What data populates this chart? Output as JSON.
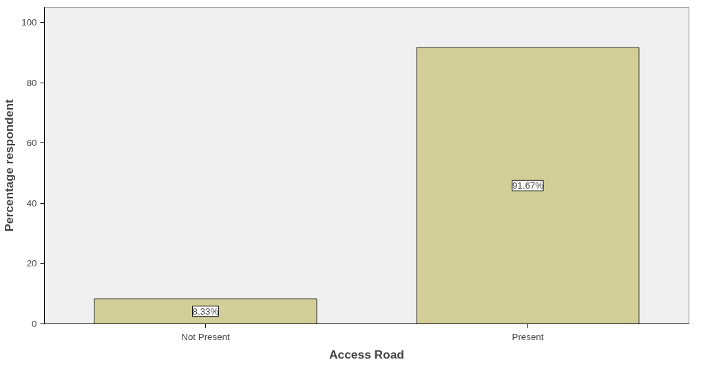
{
  "chart_data": {
    "type": "bar",
    "xlabel": "Access Road",
    "ylabel": "Percentage respondent",
    "categories": [
      "Not Present",
      "Present"
    ],
    "values": [
      8.33,
      91.67
    ],
    "value_labels": [
      "8.33%",
      "91.67%"
    ],
    "color": "#d3ce97",
    "ylim": [
      0,
      105
    ],
    "yticks": [
      0,
      20,
      40,
      60,
      80,
      100
    ],
    "grid": false
  }
}
